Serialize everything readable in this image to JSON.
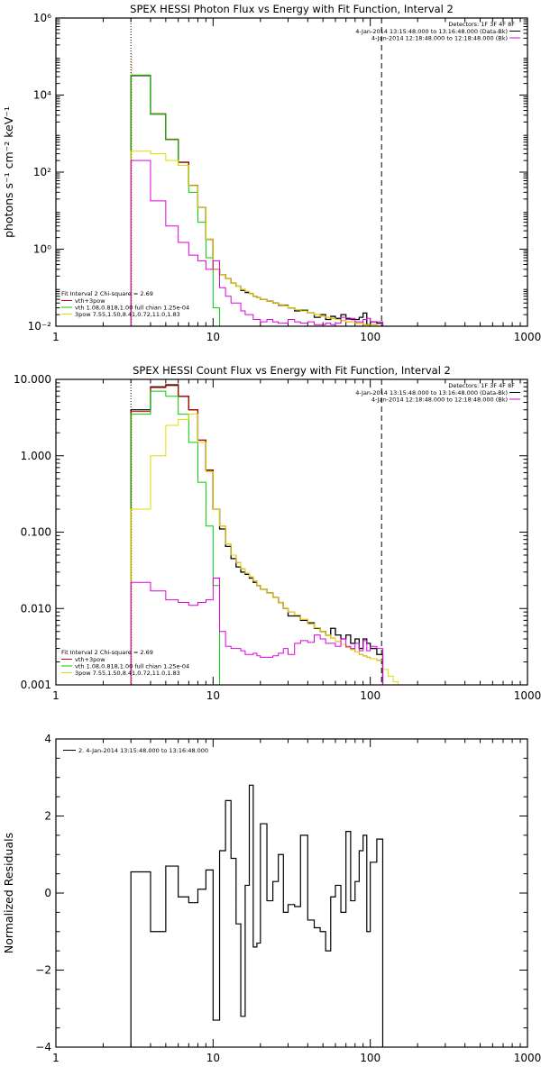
{
  "chart_data": [
    {
      "type": "line",
      "title": "SPEX HESSI Photon Flux vs Energy with Fit Function, Interval 2",
      "ylabel": "photons s⁻¹ cm⁻² keV⁻¹",
      "xlabel": "",
      "xscale": "log",
      "yscale": "log",
      "xlim": [
        1,
        1000
      ],
      "ylim": [
        0.01,
        1000000
      ],
      "xticks": [
        {
          "v": 1,
          "label": "1"
        },
        {
          "v": 10,
          "label": "10"
        },
        {
          "v": 100,
          "label": "100"
        },
        {
          "v": 1000,
          "label": "1000"
        }
      ],
      "yticks": [
        {
          "v": 0.01,
          "label": "10⁻²"
        },
        {
          "v": 1,
          "label": "10⁰"
        },
        {
          "v": 100,
          "label": "10²"
        },
        {
          "v": 10000,
          "label": "10⁴"
        },
        {
          "v": 1000000,
          "label": "10⁶"
        }
      ],
      "vlines": [
        {
          "x": 3.0,
          "style": "dotted"
        },
        {
          "x": 118,
          "style": "dashed"
        }
      ],
      "top_legend": {
        "header": "Detectors: 1F 3F 4F 8F",
        "entries": [
          {
            "text": "4-Jan-2014 13:15:48.000 to 13:16:48.000 (Data-Bk)",
            "color": "#000000"
          },
          {
            "text": "4-Jan-2014 12:18:48.000 to 12:18:48.000 (Bk)",
            "color": "#dd00dd"
          }
        ]
      },
      "bottom_legend": {
        "header": "Fit Interval 2   Chi-square = 2.69",
        "entries": [
          {
            "text": "vth+3pow",
            "color": "#dd0000"
          },
          {
            "text": "vth 1.08,0.818,1.00  full chian 1.25e-04",
            "color": "#00cc00"
          },
          {
            "text": "3pow 7.55,1.50,8.41,0.72,11.0,1.83",
            "color": "#dddd00"
          }
        ]
      },
      "edges": [
        3.0,
        3.5,
        4.0,
        4.5,
        5.0,
        5.5,
        6.0,
        6.5,
        7.0,
        7.5,
        8.0,
        8.5,
        9.0,
        9.5,
        10,
        11,
        12,
        13,
        14,
        15,
        16,
        17,
        18,
        19,
        20,
        22,
        24,
        26,
        28,
        30,
        33,
        36,
        40,
        44,
        48,
        52,
        56,
        60,
        65,
        70,
        75,
        80,
        85,
        90,
        95,
        100,
        110,
        120,
        130,
        140,
        150,
        160,
        180,
        200
      ],
      "series": [
        {
          "name": "",
          "color": "#000000",
          "width": 1.3,
          "start_edge": 0,
          "values": [
            32000,
            32000,
            3200,
            3200,
            700,
            700,
            180,
            180,
            45,
            45,
            12,
            12,
            1.8,
            1.8,
            0.3,
            0.22,
            0.17,
            0.13,
            0.11,
            0.085,
            0.075,
            0.07,
            0.06,
            0.055,
            0.05,
            0.045,
            0.04,
            0.035,
            0.035,
            0.03,
            0.025,
            0.026,
            0.022,
            0.017,
            0.02,
            0.015,
            0.018,
            0.016,
            0.02,
            0.016,
            0.015,
            0.015,
            0.017,
            0.022,
            0.011,
            0.013,
            0.012
          ]
        },
        {
          "name": "",
          "color": "#dd0000",
          "width": 1,
          "start_edge": 0,
          "values": [
            33000,
            33000,
            3300,
            3300,
            720,
            720,
            180,
            180,
            45,
            45,
            12,
            12,
            1.8,
            1.8,
            0.3,
            0.22,
            0.17,
            0.13,
            0.11,
            0.09,
            0.08,
            0.07,
            0.06,
            0.055,
            0.05,
            0.045,
            0.04,
            0.036,
            0.034,
            0.03,
            0.027,
            0.025,
            0.022,
            0.02,
            0.018,
            0.017,
            0.016,
            0.015,
            0.014,
            0.013,
            0.013,
            0.012,
            0.012,
            0.011,
            0.011,
            0.011,
            0.01
          ]
        },
        {
          "name": "",
          "color": "#00cc00",
          "width": 1,
          "start_edge": 0,
          "values": [
            33000,
            33000,
            3200,
            3200,
            700,
            700,
            150,
            150,
            30,
            30,
            5,
            5,
            0.6,
            0.6,
            0.03,
            0.006
          ]
        },
        {
          "name": "",
          "color": "#dddd00",
          "width": 1,
          "start_edge": 0,
          "values": [
            350,
            350,
            300,
            300,
            200,
            200,
            150,
            150,
            45,
            45,
            12,
            12,
            1.8,
            1.8,
            0.3,
            0.22,
            0.17,
            0.13,
            0.11,
            0.09,
            0.08,
            0.07,
            0.06,
            0.055,
            0.05,
            0.045,
            0.04,
            0.036,
            0.034,
            0.03,
            0.027,
            0.025,
            0.022,
            0.02,
            0.018,
            0.017,
            0.016,
            0.015,
            0.014,
            0.013,
            0.013,
            0.012,
            0.012,
            0.011,
            0.011,
            0.011,
            0.01
          ]
        },
        {
          "name": "",
          "color": "#dd00dd",
          "width": 1,
          "start_edge": 0,
          "values": [
            200,
            200,
            18,
            18,
            4,
            4,
            1.5,
            1.5,
            0.7,
            0.7,
            0.5,
            0.5,
            0.3,
            0.3,
            0.5,
            0.1,
            0.06,
            0.04,
            0.04,
            0.025,
            0.02,
            0.02,
            0.015,
            0.015,
            0.013,
            0.015,
            0.013,
            0.012,
            0.012,
            0.015,
            0.013,
            0.012,
            0.013,
            0.011,
            0.011,
            0.012,
            0.011,
            0.012,
            0.017,
            0.015,
            0.016,
            0.013,
            0.013,
            0.015,
            0.016,
            0.013,
            0.013
          ]
        }
      ]
    },
    {
      "type": "line",
      "title": "SPEX HESSI Count Flux vs Energy with Fit Function, Interval 2",
      "ylabel": "",
      "xlabel": "",
      "xscale": "log",
      "yscale": "log",
      "xlim": [
        1,
        1000
      ],
      "ylim": [
        0.001,
        10
      ],
      "xticks": [
        {
          "v": 1,
          "label": "1"
        },
        {
          "v": 10,
          "label": "10"
        },
        {
          "v": 100,
          "label": "100"
        },
        {
          "v": 1000,
          "label": "1000"
        }
      ],
      "yticks": [
        {
          "v": 0.001,
          "label": "0.001"
        },
        {
          "v": 0.01,
          "label": "0.010"
        },
        {
          "v": 0.1,
          "label": "0.100"
        },
        {
          "v": 1,
          "label": "1.000"
        },
        {
          "v": 10,
          "label": "10.000"
        }
      ],
      "vlines": [
        {
          "x": 3.0,
          "style": "dotted"
        },
        {
          "x": 118,
          "style": "dashed"
        }
      ],
      "top_legend": {
        "header": "Detectors: 1F 3F 4F 8F",
        "entries": [
          {
            "text": "4-Jan-2014 13:15:48.000 to 13:16:48.000 (Data-Bk)",
            "color": "#000000"
          },
          {
            "text": "4-Jan-2014 12:18:48.000 to 12:18:48.000 (Bk)",
            "color": "#dd00dd"
          }
        ]
      },
      "bottom_legend": {
        "header": "Fit Interval 2   Chi-square = 2.69",
        "entries": [
          {
            "text": "vth+3pow",
            "color": "#dd0000"
          },
          {
            "text": "vth 1.08,0.818,1.00  full chian 1.25e-04",
            "color": "#00cc00"
          },
          {
            "text": "3pow 7.55,1.50,8.41,0.72,11.0,1.83",
            "color": "#dddd00"
          }
        ]
      },
      "edges": [
        3.0,
        3.5,
        4.0,
        4.5,
        5.0,
        5.5,
        6.0,
        6.5,
        7.0,
        7.5,
        8.0,
        8.5,
        9.0,
        9.5,
        10,
        11,
        12,
        13,
        14,
        15,
        16,
        17,
        18,
        19,
        20,
        22,
        24,
        26,
        28,
        30,
        33,
        36,
        40,
        44,
        48,
        52,
        56,
        60,
        65,
        70,
        75,
        80,
        85,
        90,
        95,
        100,
        110,
        120,
        130,
        140,
        150,
        160,
        180,
        200
      ],
      "series": [
        {
          "name": "",
          "color": "#000000",
          "width": 1.3,
          "start_edge": 0,
          "values": [
            4,
            4,
            8,
            8,
            8.5,
            8.5,
            6,
            6,
            4,
            4,
            1.6,
            1.6,
            0.65,
            0.65,
            0.2,
            0.11,
            0.065,
            0.045,
            0.035,
            0.03,
            0.028,
            0.025,
            0.022,
            0.02,
            0.018,
            0.016,
            0.014,
            0.012,
            0.01,
            0.008,
            0.008,
            0.007,
            0.0065,
            0.0055,
            0.005,
            0.0045,
            0.0055,
            0.0045,
            0.004,
            0.0045,
            0.0035,
            0.004,
            0.003,
            0.004,
            0.0035,
            0.003,
            0.0025
          ]
        },
        {
          "name": "",
          "color": "#dd0000",
          "width": 1,
          "start_edge": 0,
          "values": [
            3.8,
            3.8,
            7.8,
            7.8,
            8.3,
            8.3,
            6,
            6,
            4,
            4,
            1.6,
            1.6,
            0.64,
            0.64,
            0.2,
            0.12,
            0.07,
            0.05,
            0.04,
            0.033,
            0.029,
            0.026,
            0.023,
            0.02,
            0.018,
            0.016,
            0.014,
            0.012,
            0.01,
            0.009,
            0.0082,
            0.0072,
            0.0063,
            0.0056,
            0.005,
            0.0045,
            0.0041,
            0.0037,
            0.0034,
            0.0031,
            0.0029,
            0.0027,
            0.0025,
            0.0024,
            0.0023,
            0.0022,
            0.0021
          ]
        },
        {
          "name": "",
          "color": "#00cc00",
          "width": 1,
          "start_edge": 0,
          "values": [
            3.5,
            3.5,
            7,
            7,
            6,
            6,
            3.5,
            3.5,
            1.5,
            1.5,
            0.45,
            0.45,
            0.12,
            0.12,
            0.02,
            0.001
          ]
        },
        {
          "name": "",
          "color": "#dddd00",
          "width": 1,
          "start_edge": 0,
          "values": [
            0.2,
            0.2,
            1,
            1,
            2.5,
            2.5,
            3,
            3,
            3.5,
            3.5,
            1.5,
            1.5,
            0.62,
            0.62,
            0.2,
            0.12,
            0.07,
            0.05,
            0.04,
            0.033,
            0.029,
            0.026,
            0.023,
            0.02,
            0.018,
            0.016,
            0.014,
            0.012,
            0.01,
            0.009,
            0.0082,
            0.0072,
            0.0063,
            0.0056,
            0.005,
            0.0045,
            0.0041,
            0.0037,
            0.0034,
            0.0031,
            0.0029,
            0.0027,
            0.0025,
            0.0024,
            0.0023,
            0.0022,
            0.0021,
            0.0016,
            0.0013,
            0.0011,
            0.001,
            0.0009,
            0.0008
          ]
        },
        {
          "name": "",
          "color": "#dd00dd",
          "width": 1,
          "start_edge": 0,
          "values": [
            0.022,
            0.022,
            0.017,
            0.017,
            0.013,
            0.013,
            0.012,
            0.012,
            0.011,
            0.011,
            0.012,
            0.012,
            0.013,
            0.013,
            0.025,
            0.005,
            0.0032,
            0.003,
            0.003,
            0.0028,
            0.0025,
            0.0025,
            0.0026,
            0.0024,
            0.0023,
            0.0023,
            0.0024,
            0.0026,
            0.003,
            0.0025,
            0.0035,
            0.0038,
            0.0036,
            0.0045,
            0.004,
            0.0035,
            0.0035,
            0.0032,
            0.004,
            0.0032,
            0.003,
            0.0035,
            0.0028,
            0.0038,
            0.0028,
            0.0032,
            0.003
          ]
        }
      ]
    },
    {
      "type": "line",
      "title": "",
      "ylabel": "Normalized Residuals",
      "xlabel": "",
      "xscale": "log",
      "yscale": "linear",
      "xlim": [
        1,
        1000
      ],
      "ylim": [
        -4,
        4
      ],
      "xticks": [
        {
          "v": 1,
          "label": "1"
        },
        {
          "v": 10,
          "label": "10"
        },
        {
          "v": 100,
          "label": "100"
        },
        {
          "v": 1000,
          "label": "1000"
        }
      ],
      "yticks": [
        {
          "v": -4,
          "label": "−4"
        },
        {
          "v": -2,
          "label": "−2"
        },
        {
          "v": 0,
          "label": "0"
        },
        {
          "v": 2,
          "label": "2"
        },
        {
          "v": 4,
          "label": "4"
        }
      ],
      "legend": {
        "entries": [
          {
            "text": "2.  4-Jan-2014 13:15:48.000 to 13:16:48.000",
            "color": "#000000"
          }
        ]
      },
      "edges": [
        3.0,
        3.5,
        4.0,
        4.5,
        5.0,
        5.5,
        6.0,
        6.5,
        7.0,
        7.5,
        8.0,
        8.5,
        9.0,
        9.5,
        10,
        11,
        12,
        13,
        14,
        15,
        16,
        17,
        18,
        19,
        20,
        22,
        24,
        26,
        28,
        30,
        33,
        36,
        40,
        44,
        48,
        52,
        56,
        60,
        65,
        70,
        75,
        80,
        85,
        90,
        95,
        100,
        110,
        120
      ],
      "series": [
        {
          "name": "",
          "color": "#000000",
          "width": 1.2,
          "start_edge": 0,
          "bottom_start": true,
          "values": [
            0.55,
            0.55,
            -1.0,
            -1.0,
            0.7,
            0.7,
            -0.1,
            -0.1,
            -0.25,
            -0.25,
            0.1,
            0.1,
            0.6,
            0.6,
            -3.3,
            1.1,
            2.4,
            0.9,
            -0.8,
            -3.2,
            0.2,
            2.8,
            -1.4,
            -1.3,
            1.8,
            -0.2,
            0.3,
            1.0,
            -0.5,
            -0.3,
            -0.35,
            1.5,
            -0.7,
            -0.9,
            -1.0,
            -1.5,
            -0.1,
            0.2,
            -0.5,
            1.6,
            -0.2,
            0.3,
            1.1,
            1.5,
            -1.0,
            0.8,
            1.4
          ]
        }
      ]
    }
  ]
}
